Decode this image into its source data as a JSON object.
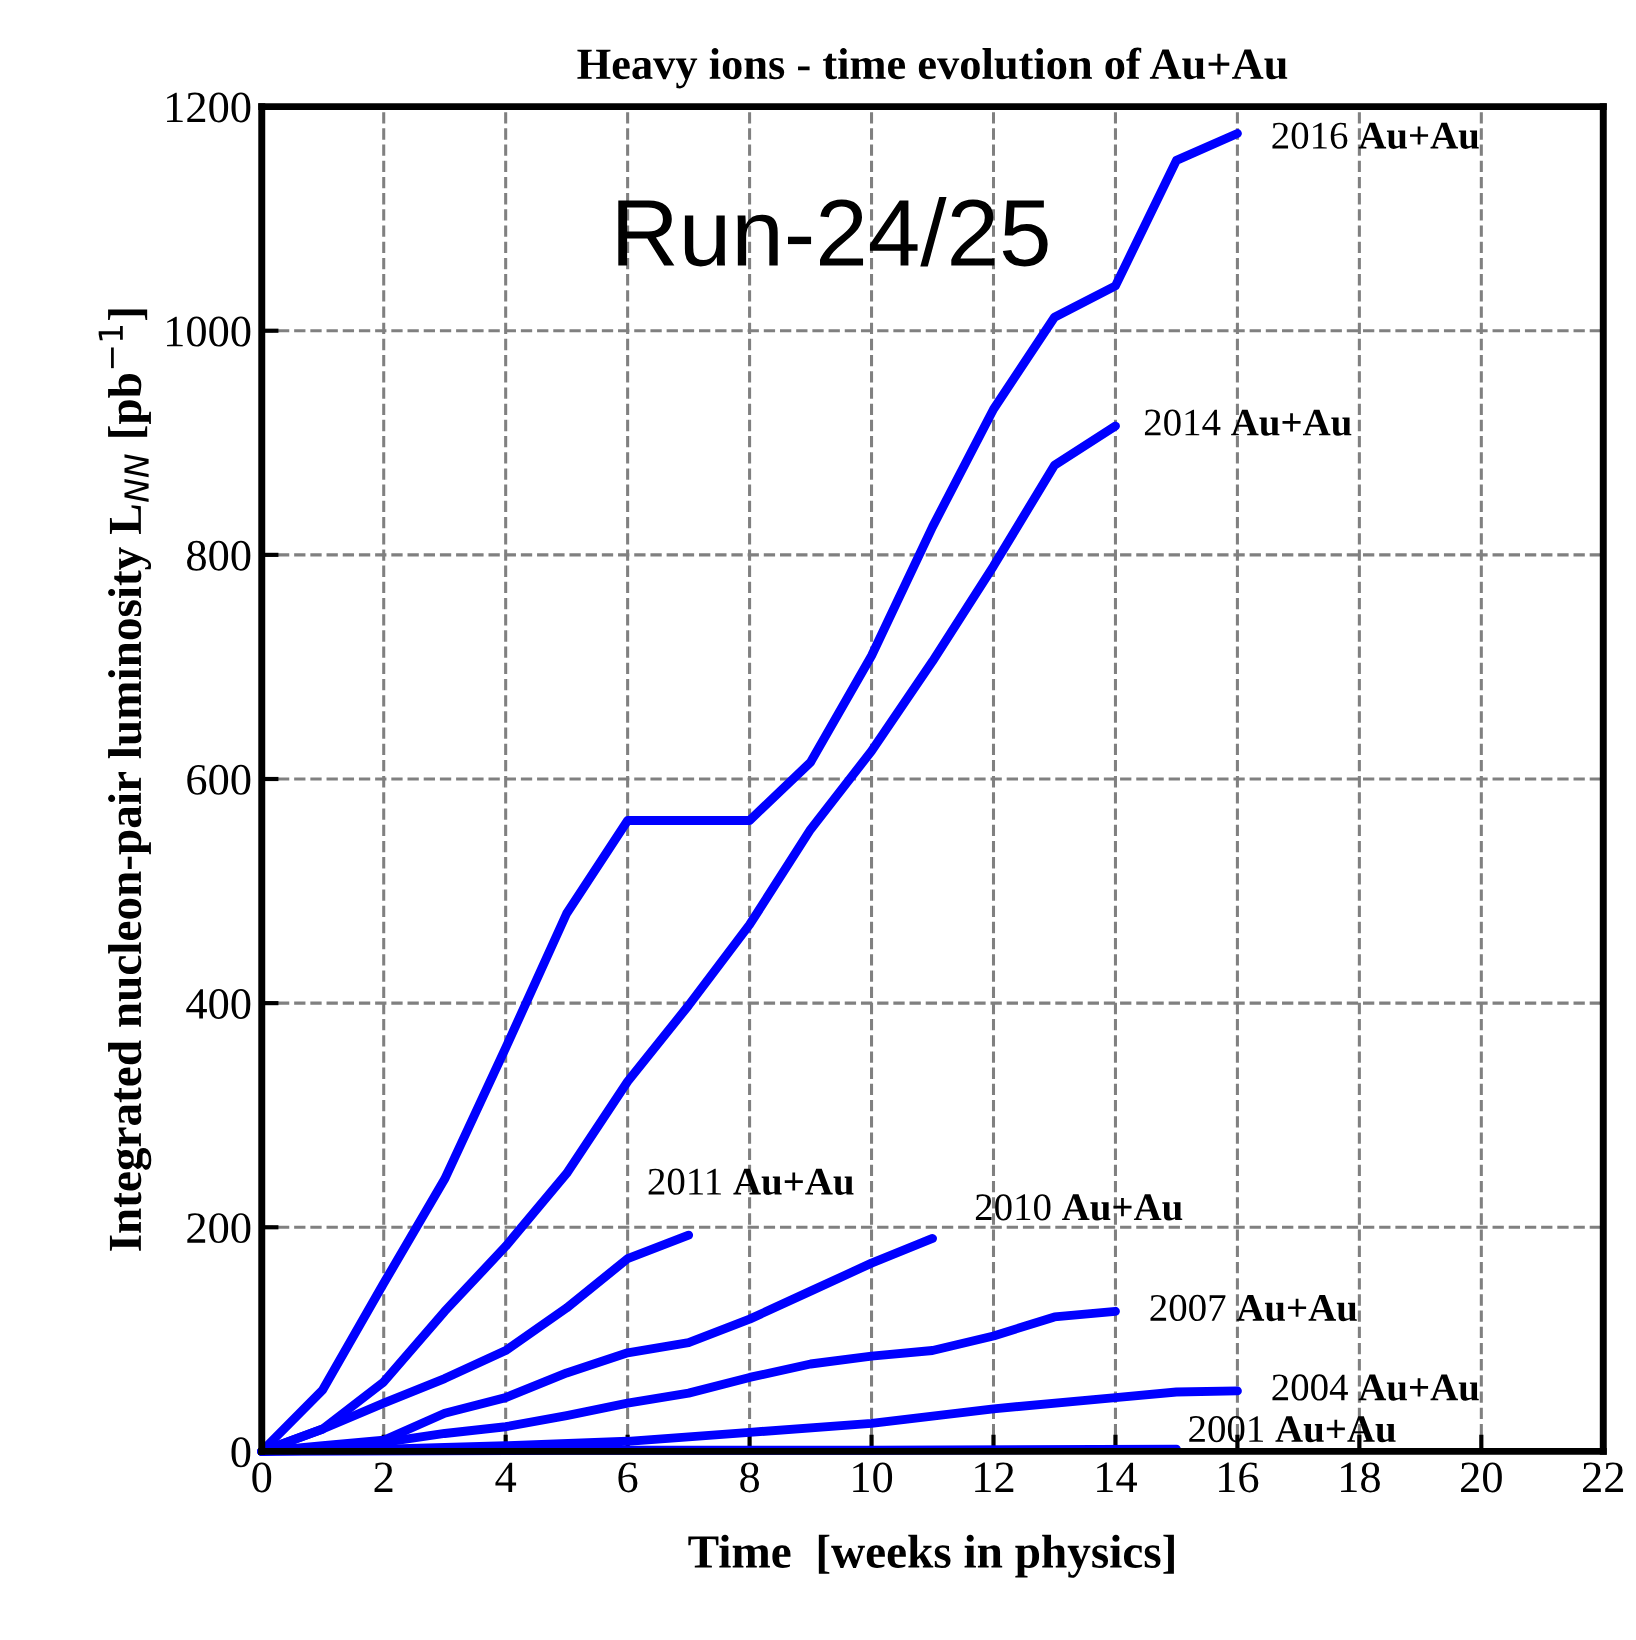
{
  "chart_data": {
    "type": "line",
    "title": "Heavy ions - time evolution of Au+Au",
    "xlabel": "Time  [weeks in physics]",
    "ylabel": "Integrated nucleon-pair luminosity L$_{NN}$ [pb$^{−1}$]",
    "xlim": [
      0,
      22
    ],
    "xticks": [
      0,
      2,
      4,
      6,
      8,
      10,
      12,
      14,
      16,
      18,
      20,
      22
    ],
    "ylim": [
      0,
      1200
    ],
    "yticks": [
      0,
      200,
      400,
      600,
      800,
      1000,
      1200
    ],
    "grid": true,
    "legend": false,
    "line_style": "solid",
    "marker": "none",
    "annotations": [
      "Run-24/25"
    ],
    "series": [
      {
        "name": "2016 Au+Au",
        "color": "#0000ff",
        "x": [
          0,
          1,
          2,
          3,
          4,
          5,
          6,
          7,
          8,
          9,
          10,
          11,
          12,
          13,
          14,
          15,
          16
        ],
        "values": [
          0,
          55,
          150,
          243,
          360,
          480,
          563,
          563,
          563,
          615,
          710,
          825,
          930,
          1012,
          1040,
          1152,
          1176
        ]
      },
      {
        "name": "2014 Au+Au",
        "color": "#0000ff",
        "x": [
          0,
          1,
          2,
          3,
          4,
          5,
          6,
          7,
          8,
          9,
          10,
          11,
          12,
          13,
          14
        ],
        "values": [
          0,
          20,
          62,
          125,
          183,
          248,
          330,
          398,
          470,
          555,
          625,
          705,
          790,
          880,
          915
        ]
      },
      {
        "name": "2011 Au+Au",
        "color": "#0000ff",
        "x": [
          0,
          1,
          2,
          3,
          4,
          5,
          6,
          7
        ],
        "values": [
          0,
          20,
          43,
          65,
          90,
          128,
          172,
          193
        ]
      },
      {
        "name": "2010 Au+Au",
        "color": "#0000ff",
        "x": [
          0,
          1,
          2,
          3,
          4,
          5,
          6,
          7,
          8,
          9,
          10,
          11
        ],
        "values": [
          0,
          5,
          10,
          34,
          48,
          70,
          88,
          97,
          118,
          143,
          168,
          190
        ]
      },
      {
        "name": "2007 Au+Au",
        "color": "#0000ff",
        "x": [
          0,
          1,
          2,
          3,
          4,
          5,
          6,
          7,
          8,
          9,
          10,
          11,
          12,
          13,
          14
        ],
        "values": [
          0,
          3,
          8,
          16,
          22,
          32,
          43,
          52,
          66,
          78,
          85,
          90,
          103,
          120,
          125
        ]
      },
      {
        "name": "2004 Au+Au",
        "color": "#0000ff",
        "x": [
          0,
          2,
          4,
          6,
          8,
          10,
          12,
          14,
          15,
          16
        ],
        "values": [
          0,
          2,
          5,
          9,
          17,
          25,
          38,
          48,
          53,
          54
        ]
      },
      {
        "name": "2001 Au+Au",
        "color": "#0000ff",
        "x": [
          0,
          5,
          10,
          15
        ],
        "values": [
          0,
          1,
          1,
          2
        ]
      }
    ]
  }
}
